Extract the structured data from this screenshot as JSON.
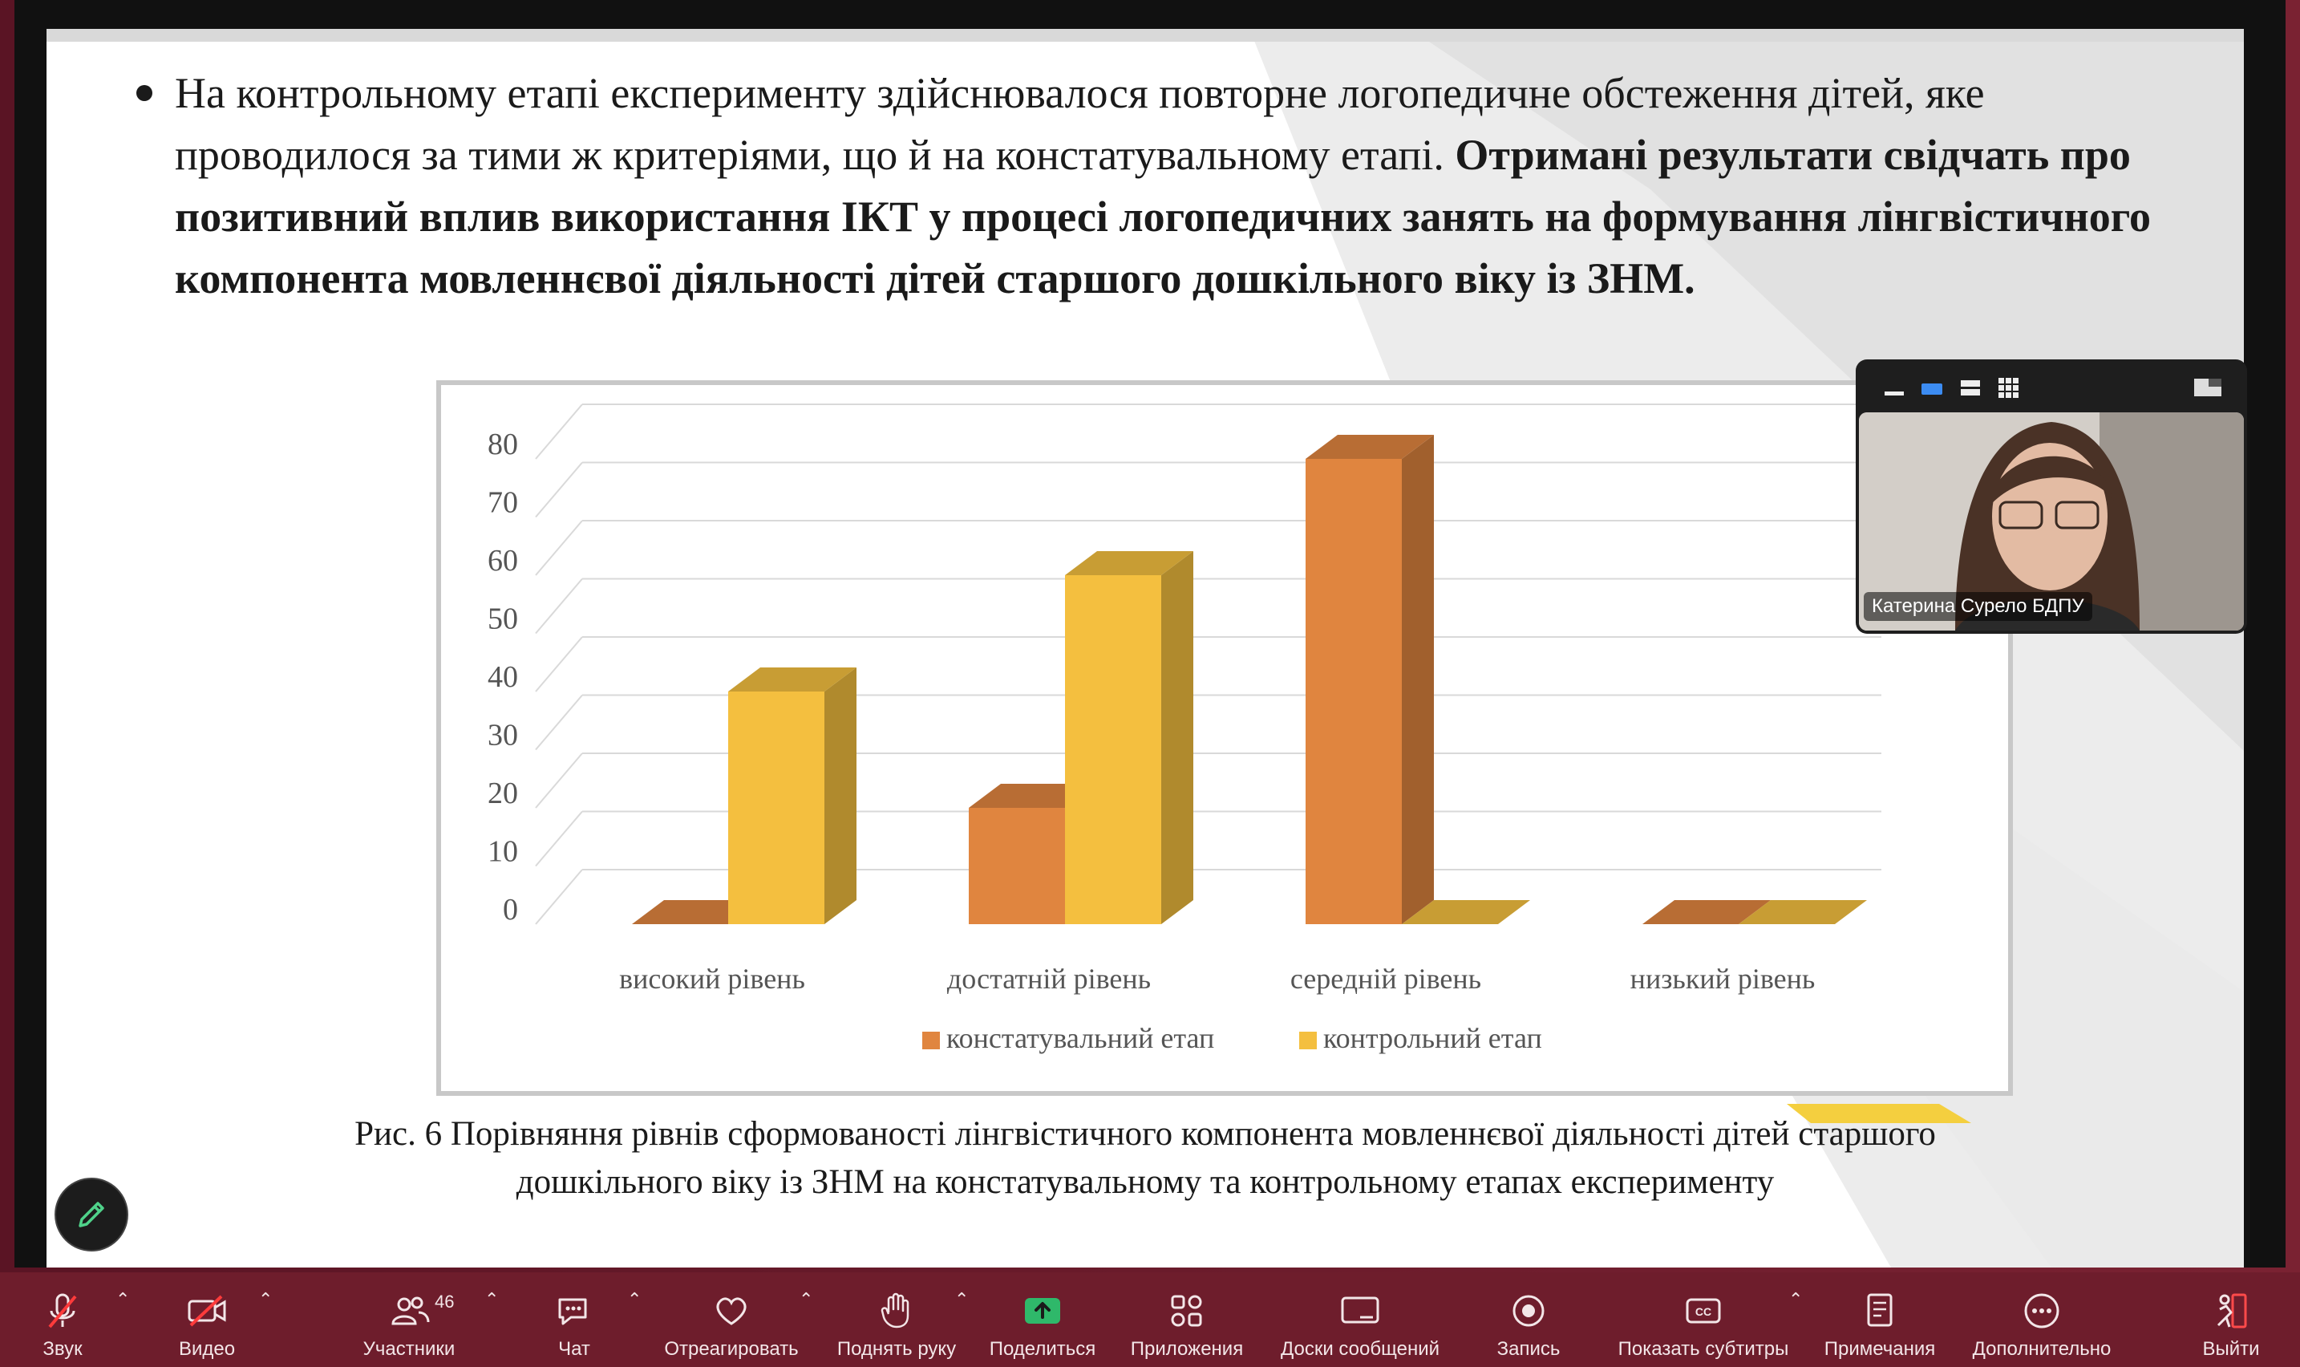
{
  "slide": {
    "bullet_normal": "На контрольному етапі експерименту здійснювалося повторне логопедичне обстеження дітей, яке проводилося за тими ж критеріями, що й на констатувальному етапі.",
    "bullet_bold": "Отримані результати свідчать про позитивний вплив використання ІКТ у процесі логопедичних занять на формування лінгвістичного компонента мовленнєвої діяльності дітей старшого дошкільного віку із ЗНМ.",
    "caption_line1": "Рис. 6 Порівняння рівнів сформованості лінгвістичного компонента мовленнєвої діяльності дітей старшого",
    "caption_line2": "дошкільного віку із ЗНМ на констатувальному та контрольному етапах експерименту"
  },
  "chart_data": {
    "type": "bar",
    "categories": [
      "високий рівень",
      "достатній рівень",
      "середній рівень",
      "низький рівень"
    ],
    "series": [
      {
        "name": "констатувальний етап",
        "values": [
          0,
          20,
          80,
          0
        ],
        "color": "#e0853f"
      },
      {
        "name": "контрольний етап",
        "values": [
          40,
          60,
          0,
          0
        ],
        "color": "#f4bf3f"
      }
    ],
    "yticks": [
      "0",
      "10",
      "20",
      "30",
      "40",
      "50",
      "60",
      "70",
      "80"
    ],
    "ylim": [
      0,
      80
    ],
    "legend_position": "bottom",
    "grid": true,
    "style": "3d-column"
  },
  "video": {
    "participant_name": "Катерина Сурело БДПУ"
  },
  "toolbar": {
    "items": [
      {
        "label": "Звук",
        "icon": "mic-muted-icon"
      },
      {
        "label": "Видео",
        "icon": "video-off-icon"
      },
      {
        "label": "Участники",
        "icon": "participants-icon",
        "count": "46"
      },
      {
        "label": "Чат",
        "icon": "chat-icon"
      },
      {
        "label": "Отреагировать",
        "icon": "heart-icon"
      },
      {
        "label": "Поднять руку",
        "icon": "hand-icon"
      },
      {
        "label": "Поделиться",
        "icon": "share-icon"
      },
      {
        "label": "Приложения",
        "icon": "apps-icon"
      },
      {
        "label": "Доски сообщений",
        "icon": "whiteboard-icon"
      },
      {
        "label": "Запись",
        "icon": "record-icon"
      },
      {
        "label": "Показать субтитры",
        "icon": "cc-icon"
      },
      {
        "label": "Примечания",
        "icon": "notes-icon"
      },
      {
        "label": "Дополнительно",
        "icon": "more-icon"
      },
      {
        "label": "Выйти",
        "icon": "leave-icon"
      }
    ],
    "accent": "#2fb86a"
  }
}
